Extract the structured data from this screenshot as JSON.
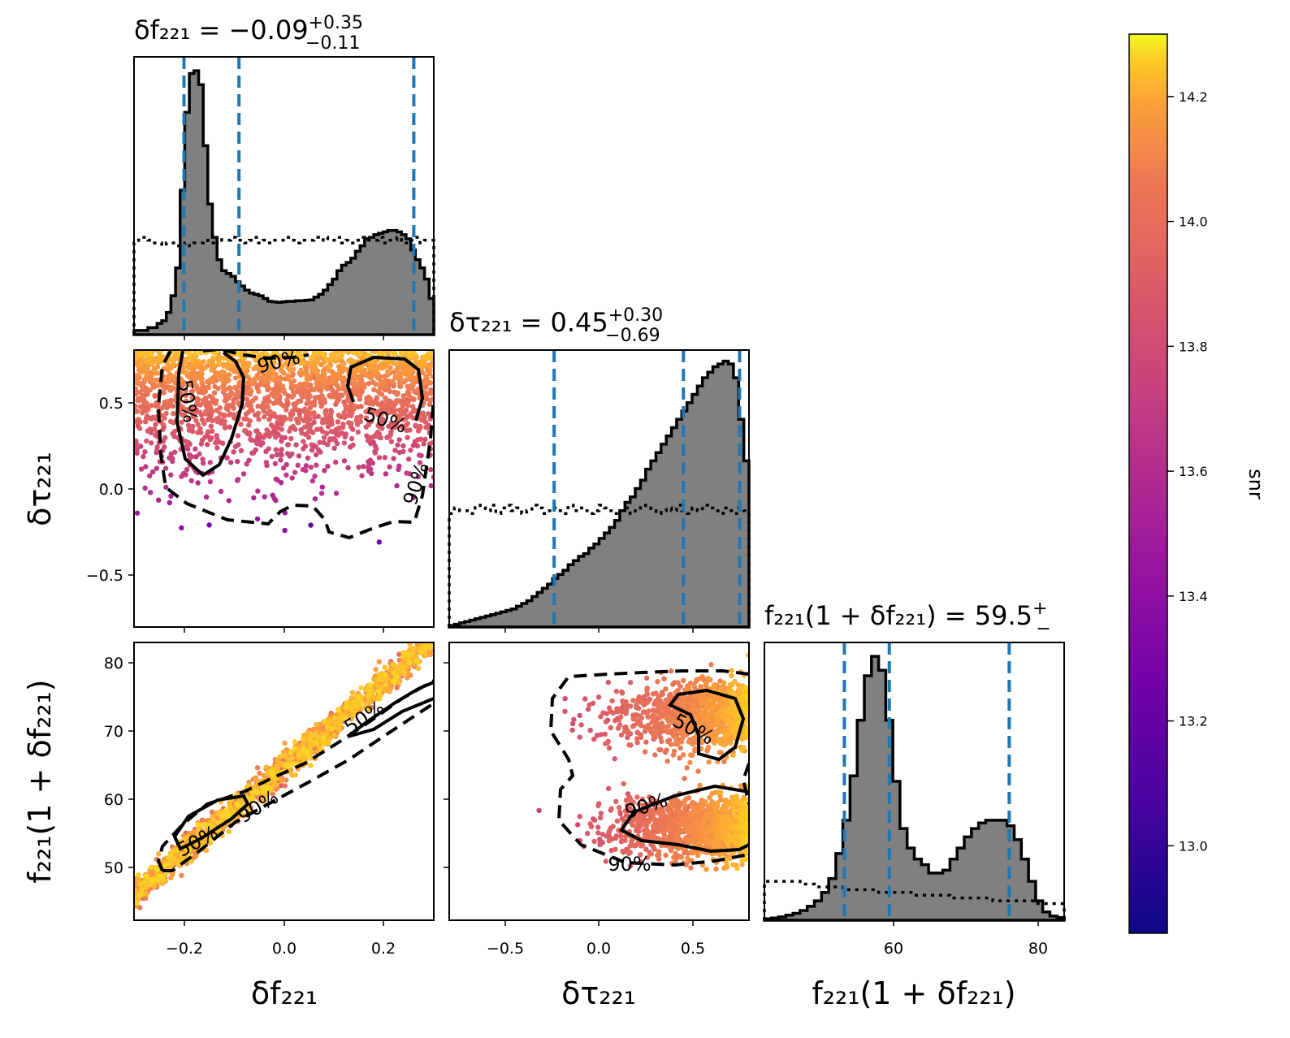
{
  "chart_data": {
    "type": "corner",
    "parameters": [
      {
        "key": "df",
        "label": "δf₂₂₁",
        "title": "δf₂₂₁ = −0.09",
        "median": -0.09,
        "plus": "+0.35",
        "minus": "−0.11",
        "range": [
          -0.3,
          0.3
        ],
        "quantiles": [
          -0.2,
          -0.09,
          0.26
        ],
        "ticks": [
          "−0.2",
          "0.0",
          "0.2"
        ],
        "tick_values": [
          -0.2,
          0.0,
          0.2
        ]
      },
      {
        "key": "dtau",
        "label": "δτ₂₂₁",
        "title": "δτ₂₂₁ = 0.45",
        "median": 0.45,
        "plus": "+0.30",
        "minus": "−0.69",
        "range": [
          -0.8,
          0.8
        ],
        "quantiles": [
          -0.24,
          0.45,
          0.75
        ],
        "ticks": [
          "−0.5",
          "0.0",
          "0.5"
        ],
        "tick_values": [
          -0.5,
          0.0,
          0.5
        ]
      },
      {
        "key": "f",
        "label": "f₂₂₁(1 + δf₂₂₁)",
        "title": "f₂₂₁(1 + δf₂₂₁) = 59.5",
        "median": 59.5,
        "plus": "+",
        "minus": "−",
        "range": [
          42,
          84
        ],
        "quantiles": [
          53.2,
          59.5,
          76.3
        ],
        "ticks": [
          "60",
          "80"
        ],
        "tick_values": [
          60,
          80
        ]
      }
    ],
    "y_ticks": {
      "dtau": {
        "labels": [
          "0.5",
          "0.0",
          "−0.5"
        ],
        "values": [
          0.5,
          0.0,
          -0.5
        ]
      },
      "f": {
        "labels": [
          "80",
          "70",
          "60",
          "50"
        ],
        "values": [
          80,
          70,
          60,
          50
        ]
      }
    },
    "histograms": {
      "df": {
        "bins": [
          -0.3,
          0.3
        ],
        "posterior": [
          0.015,
          0.015,
          0.015,
          0.025,
          0.025,
          0.04,
          0.05,
          0.08,
          0.14,
          0.24,
          0.52,
          0.8,
          0.94,
          0.95,
          0.9,
          0.68,
          0.47,
          0.35,
          0.27,
          0.23,
          0.22,
          0.21,
          0.19,
          0.175,
          0.16,
          0.15,
          0.145,
          0.14,
          0.13,
          0.12,
          0.118,
          0.116,
          0.118,
          0.12,
          0.12,
          0.122,
          0.122,
          0.124,
          0.125,
          0.135,
          0.145,
          0.16,
          0.18,
          0.2,
          0.23,
          0.25,
          0.26,
          0.275,
          0.3,
          0.32,
          0.345,
          0.35,
          0.36,
          0.365,
          0.37,
          0.375,
          0.375,
          0.37,
          0.36,
          0.345,
          0.305,
          0.27,
          0.24,
          0.2,
          0.13
        ],
        "prior": [
          0.33,
          0.35,
          0.35,
          0.34,
          0.33,
          0.33,
          0.32,
          0.33,
          0.33,
          0.32,
          0.32,
          0.33,
          0.32,
          0.33,
          0.33,
          0.34,
          0.33,
          0.33,
          0.35,
          0.34,
          0.34,
          0.35,
          0.34,
          0.34,
          0.33,
          0.34,
          0.35,
          0.33,
          0.34,
          0.33,
          0.34,
          0.34,
          0.34,
          0.35,
          0.34,
          0.33,
          0.34,
          0.34,
          0.34,
          0.35,
          0.34,
          0.35,
          0.34,
          0.34,
          0.35,
          0.33,
          0.34,
          0.33,
          0.34,
          0.35,
          0.34,
          0.34,
          0.34,
          0.35,
          0.33,
          0.34,
          0.34,
          0.35,
          0.34,
          0.33,
          0.34,
          0.35,
          0.33,
          0.34,
          0.34
        ]
      },
      "dtau": {
        "bins": [
          -0.8,
          0.8
        ],
        "posterior": [
          0.005,
          0.01,
          0.015,
          0.02,
          0.025,
          0.03,
          0.035,
          0.04,
          0.045,
          0.05,
          0.055,
          0.06,
          0.065,
          0.075,
          0.085,
          0.095,
          0.11,
          0.125,
          0.14,
          0.155,
          0.175,
          0.19,
          0.205,
          0.225,
          0.24,
          0.255,
          0.265,
          0.285,
          0.3,
          0.32,
          0.34,
          0.36,
          0.385,
          0.42,
          0.45,
          0.47,
          0.5,
          0.53,
          0.57,
          0.6,
          0.63,
          0.66,
          0.69,
          0.72,
          0.75,
          0.78,
          0.81,
          0.84,
          0.87,
          0.9,
          0.92,
          0.94,
          0.95,
          0.96,
          0.95,
          0.9,
          0.75,
          0.6
        ],
        "prior": [
          0.41,
          0.43,
          0.42,
          0.42,
          0.41,
          0.44,
          0.43,
          0.42,
          0.44,
          0.41,
          0.43,
          0.44,
          0.42,
          0.43,
          0.41,
          0.42,
          0.44,
          0.43,
          0.41,
          0.42,
          0.43,
          0.42,
          0.41,
          0.44,
          0.42,
          0.43,
          0.42,
          0.41,
          0.42,
          0.44,
          0.43,
          0.42,
          0.41,
          0.42,
          0.43,
          0.41,
          0.42,
          0.44,
          0.43,
          0.42,
          0.41,
          0.42,
          0.43,
          0.42,
          0.44,
          0.42,
          0.41,
          0.43,
          0.42,
          0.44,
          0.43,
          0.42,
          0.41,
          0.43,
          0.42,
          0.41,
          0.43,
          0.42
        ]
      },
      "f": {
        "bins": [
          42,
          84
        ],
        "posterior": [
          0.005,
          0.008,
          0.012,
          0.018,
          0.025,
          0.035,
          0.05,
          0.07,
          0.1,
          0.15,
          0.24,
          0.36,
          0.52,
          0.72,
          0.88,
          0.95,
          0.9,
          0.72,
          0.5,
          0.33,
          0.26,
          0.22,
          0.2,
          0.17,
          0.17,
          0.18,
          0.22,
          0.26,
          0.3,
          0.33,
          0.35,
          0.36,
          0.36,
          0.36,
          0.34,
          0.29,
          0.22,
          0.14,
          0.07,
          0.03,
          0.015,
          0.01
        ],
        "prior": [
          0.14,
          0.14,
          0.14,
          0.14,
          0.14,
          0.13,
          0.13,
          0.12,
          0.12,
          0.12,
          0.12,
          0.11,
          0.11,
          0.11,
          0.11,
          0.11,
          0.1,
          0.1,
          0.1,
          0.1,
          0.1,
          0.09,
          0.09,
          0.09,
          0.09,
          0.09,
          0.08,
          0.08,
          0.08,
          0.08,
          0.08,
          0.08,
          0.07,
          0.07,
          0.07,
          0.07,
          0.07,
          0.07,
          0.06,
          0.06,
          0.06,
          0.06
        ]
      }
    },
    "contour_labels": {
      "p10": [
        "90%",
        "50%",
        "50%",
        "90%"
      ],
      "p20": [
        "50%",
        "50%",
        "90%"
      ],
      "p21": [
        "50%",
        "90%",
        "90%"
      ]
    },
    "colorbar": {
      "label": "snr",
      "cmap": "plasma",
      "range": [
        12.86,
        14.3
      ],
      "ticks": [
        "13.0",
        "13.2",
        "13.4",
        "13.6",
        "13.8",
        "14.0",
        "14.2"
      ],
      "tick_values": [
        13.0,
        13.2,
        13.4,
        13.6,
        13.8,
        14.0,
        14.2
      ]
    },
    "grid": false,
    "colors": {
      "posterior_fill": "#808080",
      "quantile_line": "#1f77b4",
      "contour": "#000000"
    }
  }
}
